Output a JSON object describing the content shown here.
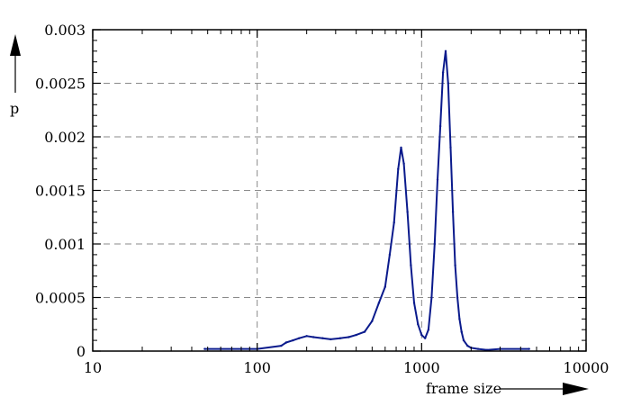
{
  "chart_data": {
    "type": "line",
    "title": "",
    "xlabel": "frame size",
    "ylabel": "p",
    "x_scale": "log",
    "xlim": [
      10,
      10000
    ],
    "ylim": [
      0,
      0.003
    ],
    "x_ticks": [
      10,
      100,
      1000,
      10000
    ],
    "x_tick_labels": [
      "10",
      "100",
      "1000",
      "10000"
    ],
    "y_ticks": [
      0,
      0.0005,
      0.001,
      0.0015,
      0.002,
      0.0025,
      0.003
    ],
    "y_tick_labels": [
      "0",
      "0.0005",
      "0.001",
      "0.0015",
      "0.002",
      "0.0025",
      "0.003"
    ],
    "grid": true,
    "line_color": "#0a1a8c",
    "series": [
      {
        "values_x": [
          48,
          100,
          140,
          150,
          165,
          180,
          200,
          220,
          250,
          280,
          320,
          360,
          400,
          450,
          500,
          550,
          600,
          640,
          680,
          720,
          750,
          780,
          820,
          860,
          900,
          950,
          1000,
          1050,
          1100,
          1150,
          1200,
          1250,
          1300,
          1350,
          1400,
          1450,
          1500,
          1550,
          1600,
          1650,
          1700,
          1750,
          1800,
          1900,
          2000,
          2200,
          2500,
          3000,
          4500
        ],
        "values_y": [
          2e-05,
          2e-05,
          5e-05,
          8e-05,
          0.0001,
          0.00012,
          0.00014,
          0.00013,
          0.00012,
          0.00011,
          0.00012,
          0.00013,
          0.00015,
          0.00018,
          0.00028,
          0.00045,
          0.0006,
          0.0009,
          0.0012,
          0.0017,
          0.0019,
          0.00175,
          0.0013,
          0.0008,
          0.00045,
          0.00025,
          0.00015,
          0.00012,
          0.0002,
          0.0005,
          0.001,
          0.0016,
          0.0021,
          0.0026,
          0.0028,
          0.0025,
          0.0019,
          0.0013,
          0.0008,
          0.0005,
          0.0003,
          0.00018,
          0.0001,
          5e-05,
          3e-05,
          2e-05,
          1e-05,
          2e-05,
          2e-05
        ]
      }
    ]
  }
}
